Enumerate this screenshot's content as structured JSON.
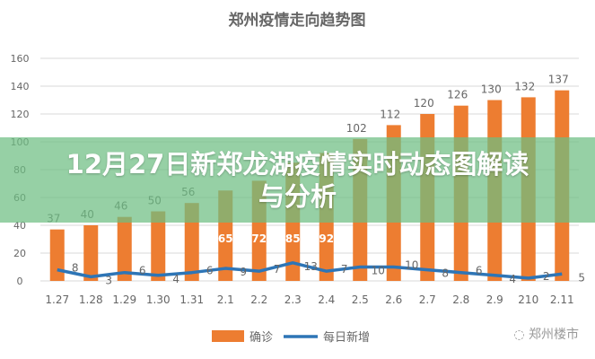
{
  "chart_data": {
    "type": "bar+line",
    "title": "郑州疫情走向趋势图",
    "categories": [
      "1.27",
      "1.28",
      "1.29",
      "1.30",
      "1.31",
      "2.1",
      "2.2",
      "2.3",
      "2.4",
      "2.5",
      "2.6",
      "2.7",
      "2.8",
      "2.9",
      "210",
      "2.11"
    ],
    "series": [
      {
        "name": "确诊",
        "type": "bar",
        "color": "#ED7D31",
        "values": [
          37,
          40,
          46,
          50,
          56,
          65,
          72,
          85,
          92,
          102,
          112,
          120,
          126,
          130,
          132,
          137
        ]
      },
      {
        "name": "每日新增",
        "type": "line",
        "color": "#2E75B6",
        "values": [
          8,
          3,
          6,
          4,
          6,
          9,
          7,
          13,
          7,
          10,
          10,
          8,
          6,
          4,
          2,
          5
        ]
      }
    ],
    "yticks": [
      0,
      20,
      40,
      60,
      80,
      100,
      120,
      140,
      160
    ],
    "ylim": [
      0,
      160
    ],
    "grid": true,
    "legend": "bottom"
  },
  "banner": {
    "title": "12月27日新郑龙湖疫情实时动态图解读与分析"
  },
  "watermark": "郑州楼市"
}
